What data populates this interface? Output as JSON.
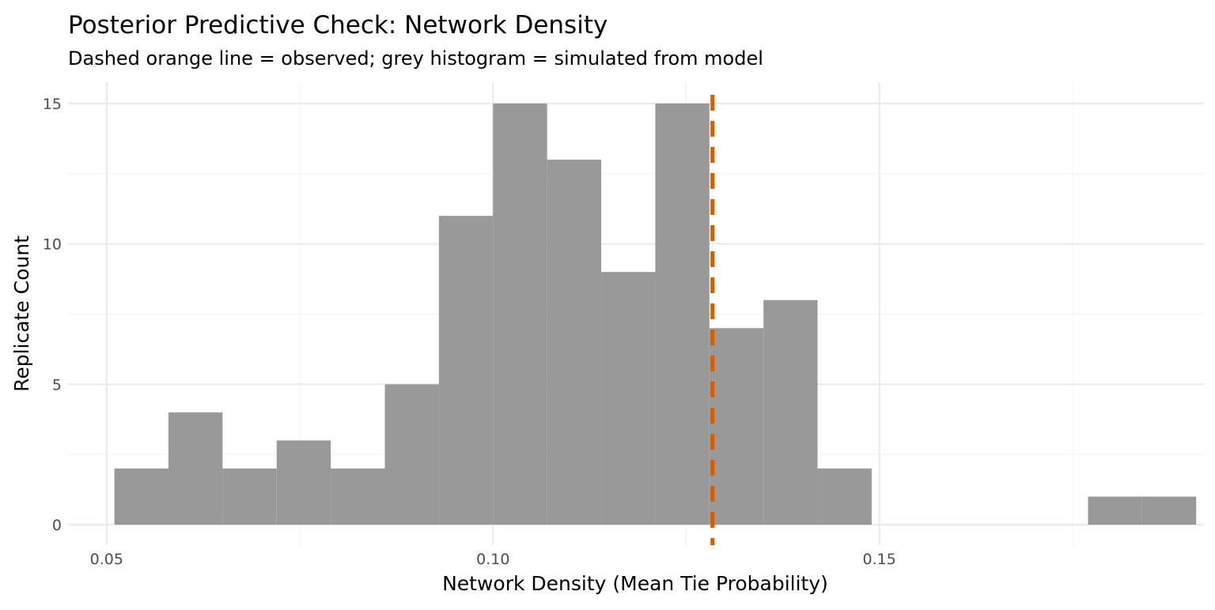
{
  "chart_data": {
    "type": "bar",
    "title": "Posterior Predictive Check: Network Density",
    "subtitle": "Dashed orange line = observed; grey histogram = simulated from model",
    "xlabel": "Network Density (Mean Tie Probability)",
    "ylabel": "Replicate Count",
    "xlim": [
      0.045,
      0.192
    ],
    "ylim": [
      0,
      15.5
    ],
    "x_ticks": [
      {
        "value": 0.05,
        "label": "0.05"
      },
      {
        "value": 0.1,
        "label": "0.10"
      },
      {
        "value": 0.15,
        "label": "0.15"
      }
    ],
    "y_ticks": [
      {
        "value": 0,
        "label": "0"
      },
      {
        "value": 5,
        "label": "5"
      },
      {
        "value": 10,
        "label": "10"
      },
      {
        "value": 15,
        "label": "15"
      }
    ],
    "grid": true,
    "bars": [
      {
        "x0": 0.051,
        "x1": 0.058,
        "count": 2
      },
      {
        "x0": 0.058,
        "x1": 0.065,
        "count": 4
      },
      {
        "x0": 0.065,
        "x1": 0.072,
        "count": 2
      },
      {
        "x0": 0.072,
        "x1": 0.079,
        "count": 3
      },
      {
        "x0": 0.079,
        "x1": 0.086,
        "count": 2
      },
      {
        "x0": 0.086,
        "x1": 0.093,
        "count": 5
      },
      {
        "x0": 0.093,
        "x1": 0.1,
        "count": 11
      },
      {
        "x0": 0.1,
        "x1": 0.107,
        "count": 15
      },
      {
        "x0": 0.107,
        "x1": 0.114,
        "count": 13
      },
      {
        "x0": 0.114,
        "x1": 0.121,
        "count": 9
      },
      {
        "x0": 0.121,
        "x1": 0.128,
        "count": 15
      },
      {
        "x0": 0.128,
        "x1": 0.135,
        "count": 7
      },
      {
        "x0": 0.135,
        "x1": 0.142,
        "count": 8
      },
      {
        "x0": 0.142,
        "x1": 0.149,
        "count": 2
      },
      {
        "x0": 0.149,
        "x1": 0.156,
        "count": 0
      },
      {
        "x0": 0.156,
        "x1": 0.163,
        "count": 0
      },
      {
        "x0": 0.163,
        "x1": 0.17,
        "count": 0
      },
      {
        "x0": 0.17,
        "x1": 0.177,
        "count": 0
      },
      {
        "x0": 0.177,
        "x1": 0.184,
        "count": 1
      },
      {
        "x0": 0.184,
        "x1": 0.191,
        "count": 1
      }
    ],
    "observed": {
      "value": 0.1284,
      "color": "#D55E00",
      "style": "dashed"
    },
    "bar_color": "#999999"
  }
}
